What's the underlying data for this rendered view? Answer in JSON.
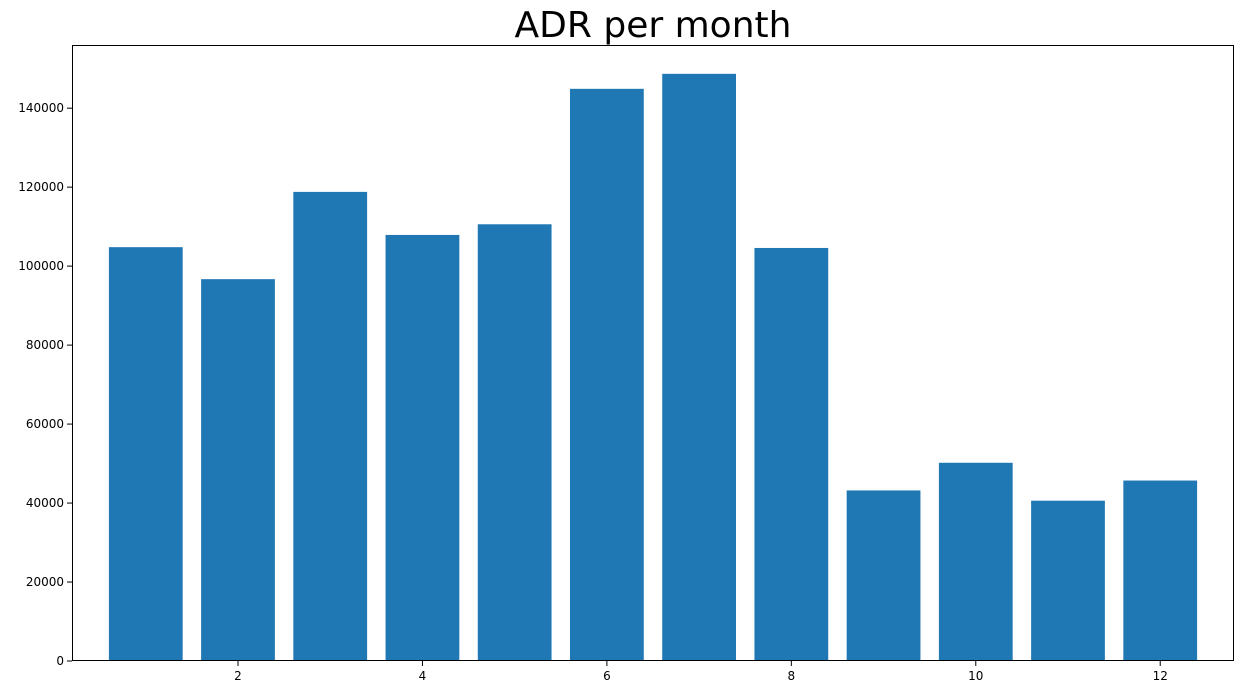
{
  "chart_data": {
    "type": "bar",
    "title": "ADR per month",
    "xlabel": "",
    "ylabel": "",
    "x": [
      1,
      2,
      3,
      4,
      5,
      6,
      7,
      8,
      9,
      10,
      11,
      12
    ],
    "values": [
      104800,
      96700,
      118800,
      107900,
      110600,
      144900,
      148700,
      104600,
      43200,
      50200,
      40600,
      45700
    ],
    "xticks": [
      2,
      4,
      6,
      8,
      10,
      12
    ],
    "yticks": [
      0,
      20000,
      40000,
      60000,
      80000,
      100000,
      120000,
      140000
    ],
    "ylim": [
      0,
      156000
    ],
    "xlim": [
      0.2,
      12.8
    ],
    "bar_color": "#1f77b4",
    "grid": false,
    "legend": "none"
  }
}
